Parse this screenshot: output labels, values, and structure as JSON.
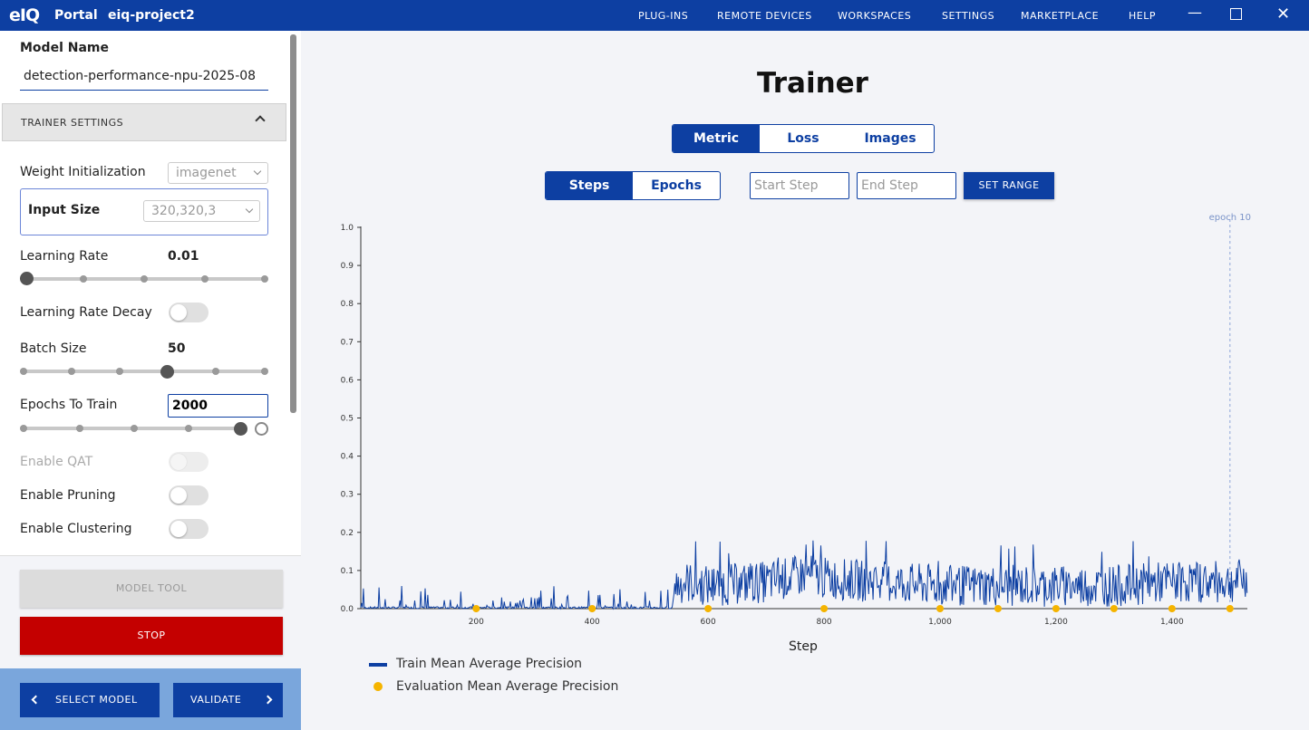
{
  "titlebar": {
    "logo": "eIQ",
    "app_name": "Portal",
    "project_name": "eiq-project2",
    "menu": [
      "PLUG-INS",
      "REMOTE DEVICES",
      "WORKSPACES",
      "SETTINGS",
      "MARKETPLACE",
      "HELP"
    ],
    "window_controls": [
      "minimize-icon",
      "maximize-icon",
      "close-icon"
    ]
  },
  "sidebar": {
    "model_name_label": "Model Name",
    "model_name_value": "detection-performance-npu-2025-08",
    "section_title": "TRAINER SETTINGS",
    "weight_init": {
      "label": "Weight Initialization",
      "value": "imagenet"
    },
    "input_size": {
      "label": "Input Size",
      "value": "320,320,3"
    },
    "learning_rate": {
      "label": "Learning Rate",
      "value": "0.01",
      "slider_position": 0
    },
    "learning_rate_decay": {
      "label": "Learning Rate Decay",
      "enabled": false
    },
    "batch_size": {
      "label": "Batch Size",
      "value": "50",
      "slider_position": 3
    },
    "epochs": {
      "label": "Epochs To Train",
      "value": "2000"
    },
    "enable_qat": {
      "label": "Enable QAT",
      "enabled": false,
      "disabled": true
    },
    "enable_pruning": {
      "label": "Enable Pruning",
      "enabled": false
    },
    "enable_clustering": {
      "label": "Enable Clustering",
      "enabled": false
    },
    "model_tool_label": "MODEL TOOL",
    "stop_label": "STOP",
    "select_model_label": "SELECT MODEL",
    "validate_label": "VALIDATE"
  },
  "main": {
    "title": "Trainer",
    "view_tabs": [
      "Metric",
      "Loss",
      "Images"
    ],
    "active_view_tab": "Metric",
    "axis_tabs": [
      "Steps",
      "Epochs"
    ],
    "active_axis_tab": "Steps",
    "start_step_placeholder": "Start Step",
    "end_step_placeholder": "End Step",
    "set_range_label": "SET RANGE"
  },
  "chart_data": {
    "type": "line",
    "xlabel": "Step",
    "ylabel": "",
    "xlim": [
      1,
      1530
    ],
    "ylim": [
      0,
      1.0
    ],
    "x_ticks": [
      "200",
      "400",
      "600",
      "800",
      "1,000",
      "1,200",
      "1,400"
    ],
    "y_ticks": [
      "0.0",
      "0.1",
      "0.2",
      "0.3",
      "0.4",
      "0.5",
      "0.6",
      "0.7",
      "0.8",
      "0.9",
      "1.0"
    ],
    "epoch_marker": {
      "label": "epoch 10",
      "x": 1500
    },
    "grid": false,
    "legend_position": "bottom-left",
    "colors": {
      "train": "#0d3fa2",
      "eval": "#f5b400"
    },
    "series": [
      {
        "name": "Train Mean Average Precision",
        "style": "line",
        "description_points": [
          [
            1,
            0.0
          ],
          [
            100,
            0.01
          ],
          [
            200,
            0.02
          ],
          [
            300,
            0.02
          ],
          [
            400,
            0.03
          ],
          [
            500,
            0.04
          ],
          [
            560,
            0.07
          ],
          [
            600,
            0.06
          ],
          [
            700,
            0.07
          ],
          [
            770,
            0.09
          ],
          [
            800,
            0.08
          ],
          [
            900,
            0.07
          ],
          [
            1000,
            0.06
          ],
          [
            1100,
            0.06
          ],
          [
            1200,
            0.06
          ],
          [
            1300,
            0.06
          ],
          [
            1400,
            0.07
          ],
          [
            1500,
            0.07
          ],
          [
            1530,
            0.08
          ]
        ]
      },
      {
        "name": "Evaluation Mean Average Precision",
        "style": "points",
        "x": [
          200,
          400,
          600,
          800,
          1000,
          1100,
          1200,
          1300,
          1400,
          1500
        ],
        "values": [
          0,
          0,
          0,
          0,
          0,
          0,
          0,
          0,
          0,
          0
        ]
      }
    ]
  }
}
